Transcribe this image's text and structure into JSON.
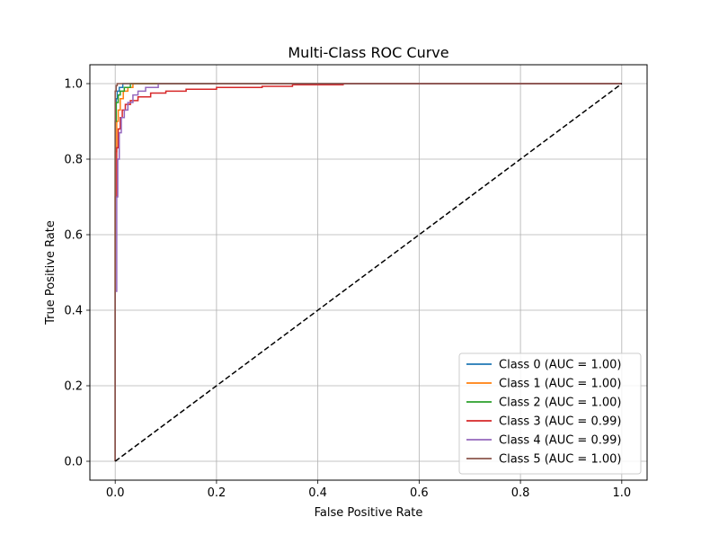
{
  "chart_data": {
    "type": "line",
    "title": "Multi-Class ROC Curve",
    "xlabel": "False Positive Rate",
    "ylabel": "True Positive Rate",
    "xlim": [
      -0.05,
      1.05
    ],
    "ylim": [
      -0.05,
      1.05
    ],
    "x_ticks": [
      0.0,
      0.2,
      0.4,
      0.6,
      0.8,
      1.0
    ],
    "y_ticks": [
      0.0,
      0.2,
      0.4,
      0.6,
      0.8,
      1.0
    ],
    "x_tick_labels": [
      "0.0",
      "0.2",
      "0.4",
      "0.6",
      "0.8",
      "1.0"
    ],
    "y_tick_labels": [
      "0.0",
      "0.2",
      "0.4",
      "0.6",
      "0.8",
      "1.0"
    ],
    "grid": true,
    "legend_position": "lower-right",
    "series": [
      {
        "name": "Class 0 (AUC = 1.00)",
        "color": "#1f77b4",
        "x": [
          0.0,
          0.0,
          0.002,
          0.002,
          0.004,
          0.004,
          0.008,
          0.008,
          0.015,
          0.015,
          1.0
        ],
        "y": [
          0.0,
          0.9,
          0.9,
          0.96,
          0.96,
          0.98,
          0.98,
          0.99,
          0.99,
          1.0,
          1.0
        ]
      },
      {
        "name": "Class 1 (AUC = 1.00)",
        "color": "#ff7f0e",
        "x": [
          0.0,
          0.0,
          0.003,
          0.003,
          0.006,
          0.006,
          0.01,
          0.01,
          0.016,
          0.016,
          0.025,
          0.025,
          0.035,
          0.035,
          1.0
        ],
        "y": [
          0.0,
          0.82,
          0.82,
          0.9,
          0.9,
          0.93,
          0.93,
          0.96,
          0.96,
          0.98,
          0.98,
          0.99,
          0.99,
          1.0,
          1.0
        ]
      },
      {
        "name": "Class 2 (AUC = 1.00)",
        "color": "#2ca02c",
        "x": [
          0.0,
          0.0,
          0.002,
          0.002,
          0.006,
          0.006,
          0.01,
          0.01,
          0.018,
          0.018,
          0.03,
          0.03,
          1.0
        ],
        "y": [
          0.0,
          0.9,
          0.9,
          0.95,
          0.95,
          0.97,
          0.97,
          0.98,
          0.98,
          0.99,
          0.99,
          1.0,
          1.0
        ]
      },
      {
        "name": "Class 3 (AUC = 0.99)",
        "color": "#d62728",
        "x": [
          0.0,
          0.0,
          0.003,
          0.003,
          0.006,
          0.006,
          0.01,
          0.01,
          0.014,
          0.014,
          0.02,
          0.02,
          0.03,
          0.03,
          0.045,
          0.045,
          0.07,
          0.07,
          0.1,
          0.1,
          0.14,
          0.14,
          0.2,
          0.2,
          0.29,
          0.29,
          0.35,
          0.35,
          0.45,
          0.45,
          1.0
        ],
        "y": [
          0.0,
          0.7,
          0.7,
          0.83,
          0.83,
          0.88,
          0.88,
          0.91,
          0.91,
          0.93,
          0.93,
          0.945,
          0.945,
          0.955,
          0.955,
          0.965,
          0.965,
          0.975,
          0.975,
          0.98,
          0.98,
          0.985,
          0.985,
          0.99,
          0.99,
          0.993,
          0.993,
          0.997,
          0.997,
          1.0,
          1.0
        ]
      },
      {
        "name": "Class 4 (AUC = 0.99)",
        "color": "#9467bd",
        "x": [
          0.0,
          0.0,
          0.003,
          0.003,
          0.005,
          0.005,
          0.008,
          0.008,
          0.012,
          0.012,
          0.018,
          0.018,
          0.025,
          0.025,
          0.035,
          0.035,
          0.045,
          0.045,
          0.06,
          0.06,
          0.085,
          0.085,
          1.0
        ],
        "y": [
          0.0,
          0.45,
          0.45,
          0.7,
          0.7,
          0.8,
          0.8,
          0.87,
          0.87,
          0.91,
          0.91,
          0.93,
          0.93,
          0.95,
          0.95,
          0.97,
          0.97,
          0.98,
          0.98,
          0.99,
          0.99,
          1.0,
          1.0
        ]
      },
      {
        "name": "Class 5 (AUC = 1.00)",
        "color": "#8c564b",
        "x": [
          0.0,
          0.0,
          0.002,
          0.002,
          0.004,
          0.004,
          1.0
        ],
        "y": [
          0.0,
          0.98,
          0.98,
          0.995,
          0.995,
          1.0,
          1.0
        ]
      }
    ],
    "reference_line": {
      "x": [
        0.0,
        1.0
      ],
      "y": [
        0.0,
        1.0
      ],
      "color": "#000000",
      "style": "dashed"
    }
  }
}
